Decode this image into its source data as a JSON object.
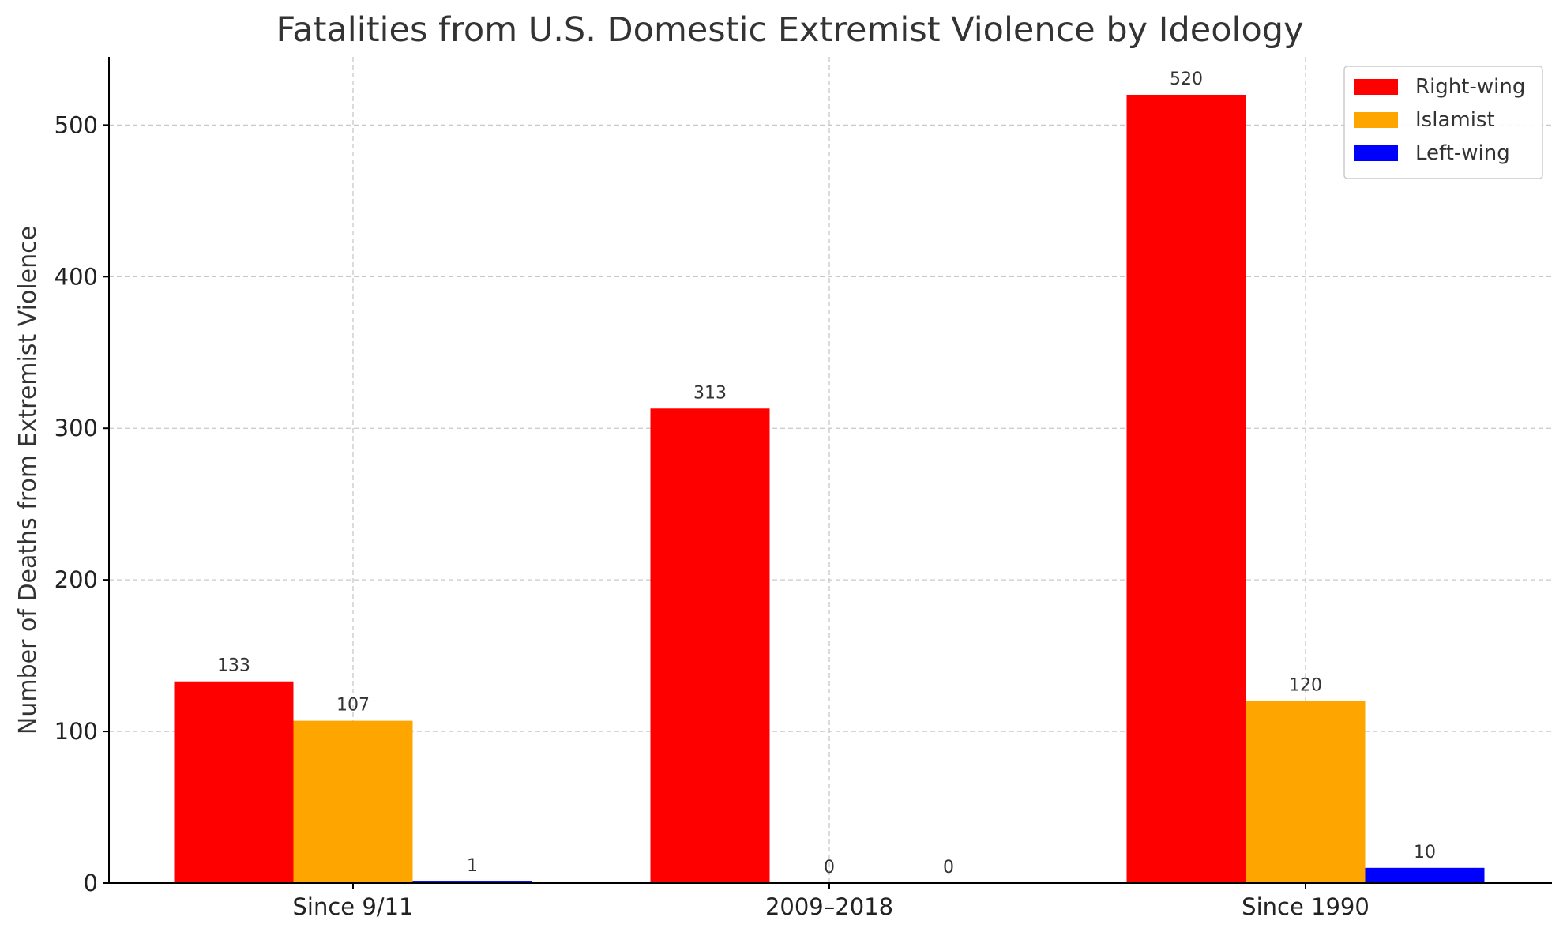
{
  "chart_data": {
    "type": "bar",
    "title": "Fatalities from U.S. Domestic Extremist Violence by Ideology",
    "xlabel": "",
    "ylabel": "Number of Deaths from Extremist Violence",
    "categories": [
      "Since 9/11",
      "2009–2018",
      "Since 1990"
    ],
    "series": [
      {
        "name": "Right-wing",
        "color": "#ff0000",
        "values": [
          133,
          313,
          520
        ]
      },
      {
        "name": "Islamist",
        "color": "#ffa500",
        "values": [
          107,
          0,
          120
        ]
      },
      {
        "name": "Left-wing",
        "color": "#0000ff",
        "values": [
          1,
          0,
          10
        ]
      }
    ],
    "ylim": [
      0,
      545
    ],
    "yticks": [
      0,
      100,
      200,
      300,
      400,
      500
    ],
    "grid": true,
    "legend": "top-right",
    "data_labels": true
  }
}
